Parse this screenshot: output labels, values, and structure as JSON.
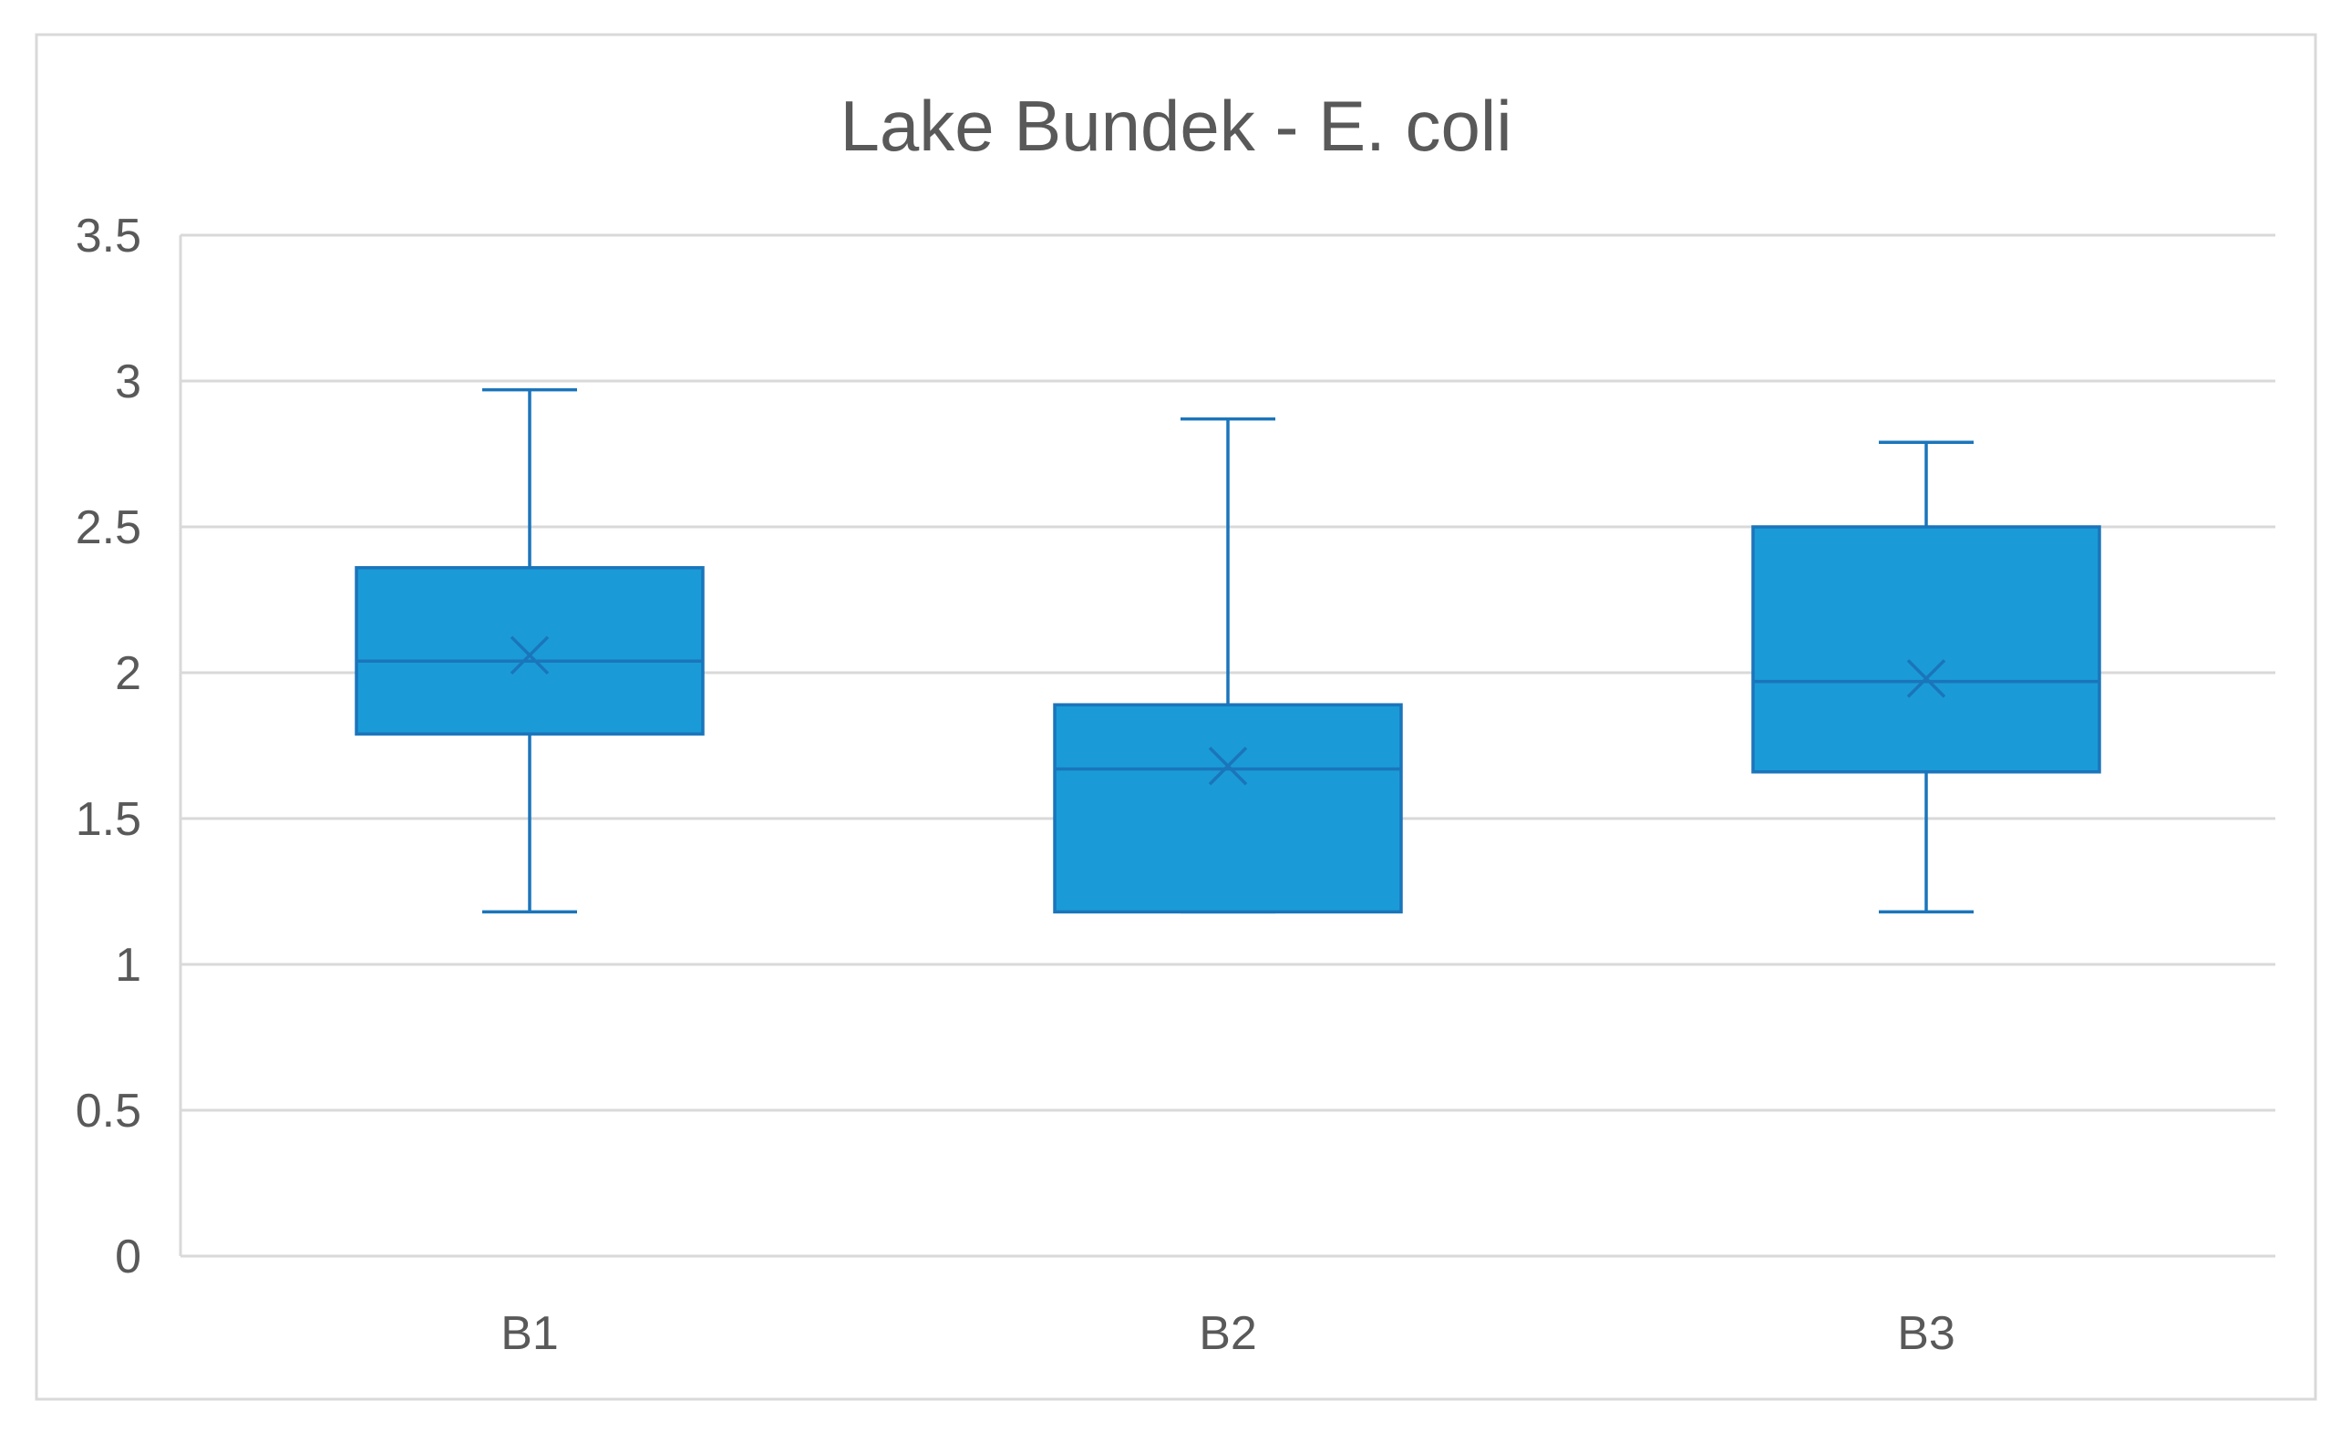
{
  "chart_data": {
    "type": "box",
    "title": "Lake Bundek - E. coli",
    "xlabel": "",
    "ylabel": "",
    "ylim": [
      0,
      3.5
    ],
    "y_ticks": [
      0,
      0.5,
      1,
      1.5,
      2,
      2.5,
      3,
      3.5
    ],
    "y_tick_labels": [
      "0",
      "0.5",
      "1",
      "1.5",
      "2",
      "2.5",
      "3",
      "3.5"
    ],
    "grid": true,
    "categories": [
      "B1",
      "B2",
      "B3"
    ],
    "boxes": [
      {
        "category": "B1",
        "min": 1.18,
        "q1": 1.79,
        "median": 2.04,
        "q3": 2.36,
        "max": 2.97,
        "mean": 2.06
      },
      {
        "category": "B2",
        "min": 1.18,
        "q1": 1.18,
        "median": 1.67,
        "q3": 1.89,
        "max": 2.87,
        "mean": 1.68
      },
      {
        "category": "B3",
        "min": 1.18,
        "q1": 1.66,
        "median": 1.97,
        "q3": 2.5,
        "max": 2.79,
        "mean": 1.98
      }
    ],
    "colors": {
      "box_fill": "#1A9BD7",
      "box_stroke": "#1B75BB",
      "grid": "#D9D9D9",
      "axis": "#D9D9D9",
      "text": "#595959",
      "frame": "#D9D9D9"
    }
  }
}
